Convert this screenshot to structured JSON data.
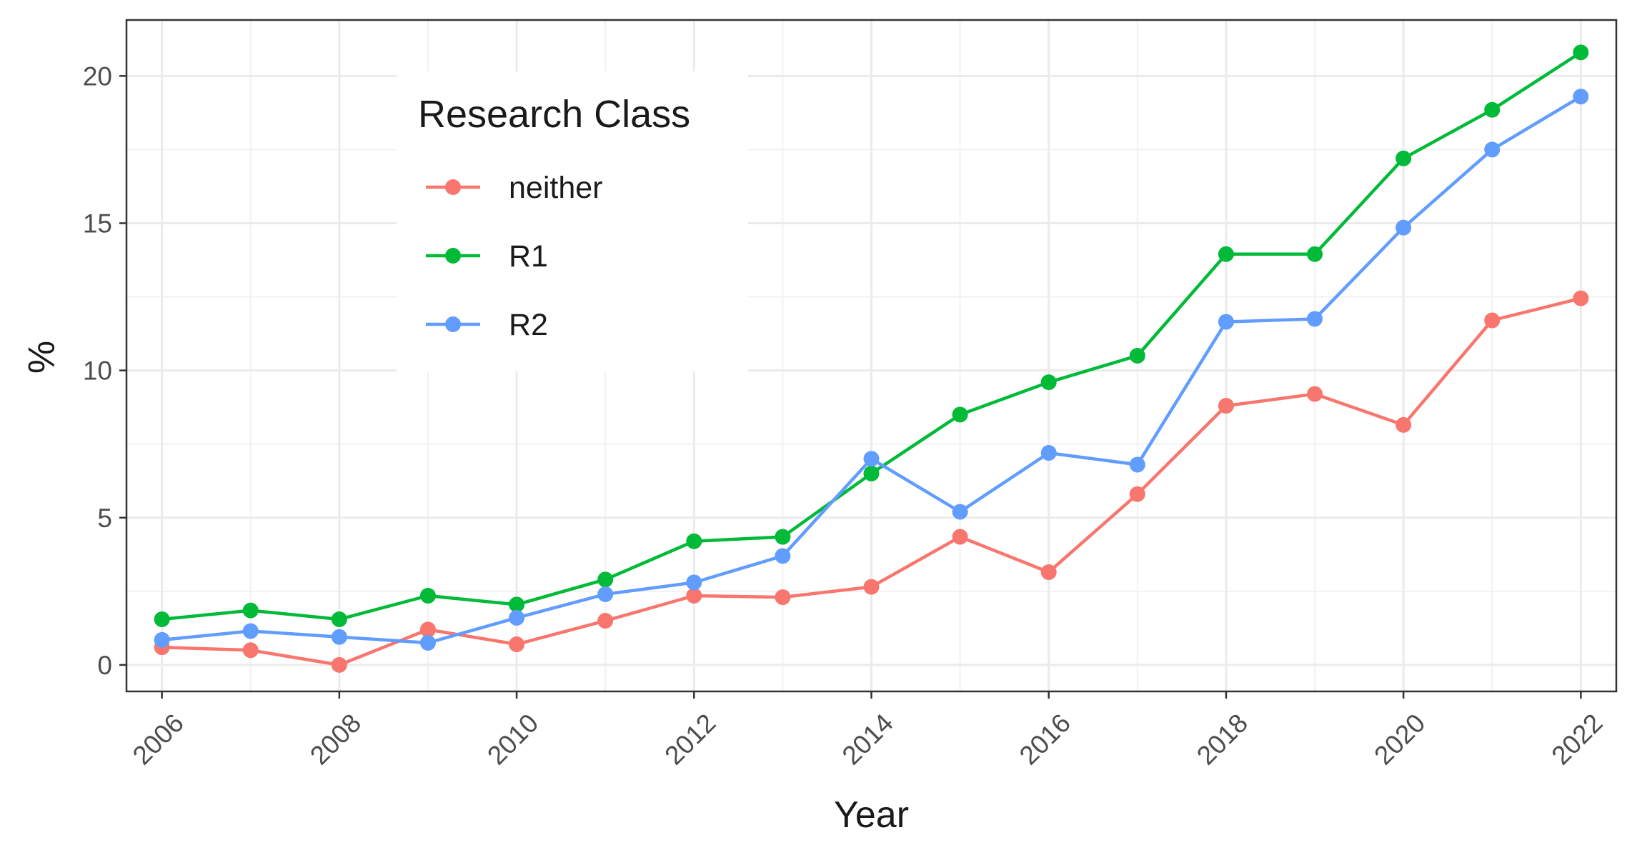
{
  "chart_data": {
    "type": "line",
    "xlabel": "Year",
    "ylabel": "%",
    "xlim": [
      2005.6,
      2022.4
    ],
    "ylim": [
      -0.9,
      21.9
    ],
    "x_ticks": [
      2006,
      2008,
      2010,
      2012,
      2014,
      2016,
      2018,
      2020,
      2022
    ],
    "y_ticks": [
      0,
      5,
      10,
      15,
      20
    ],
    "grid": true,
    "legend": {
      "title": "Research Class",
      "placement": "top-left-inside"
    },
    "x": [
      2006,
      2007,
      2008,
      2009,
      2010,
      2011,
      2012,
      2013,
      2014,
      2015,
      2016,
      2017,
      2018,
      2019,
      2020,
      2021,
      2022
    ],
    "series": [
      {
        "name": "neither",
        "color": "#F8766D",
        "values": [
          0.6,
          0.5,
          0.0,
          1.2,
          0.7,
          1.5,
          2.35,
          2.3,
          2.65,
          4.35,
          3.15,
          5.8,
          8.8,
          9.2,
          8.15,
          11.7,
          12.45
        ]
      },
      {
        "name": "R1",
        "color": "#00BA38",
        "values": [
          1.55,
          1.85,
          1.55,
          2.35,
          2.05,
          2.9,
          4.2,
          4.35,
          6.5,
          8.5,
          9.6,
          10.5,
          13.95,
          13.95,
          17.2,
          18.85,
          20.8
        ]
      },
      {
        "name": "R2",
        "color": "#619CFF",
        "values": [
          0.85,
          1.15,
          0.95,
          0.75,
          1.6,
          2.4,
          2.8,
          3.7,
          7.0,
          5.2,
          7.2,
          6.8,
          11.65,
          11.75,
          14.85,
          17.5,
          19.3
        ]
      }
    ]
  }
}
